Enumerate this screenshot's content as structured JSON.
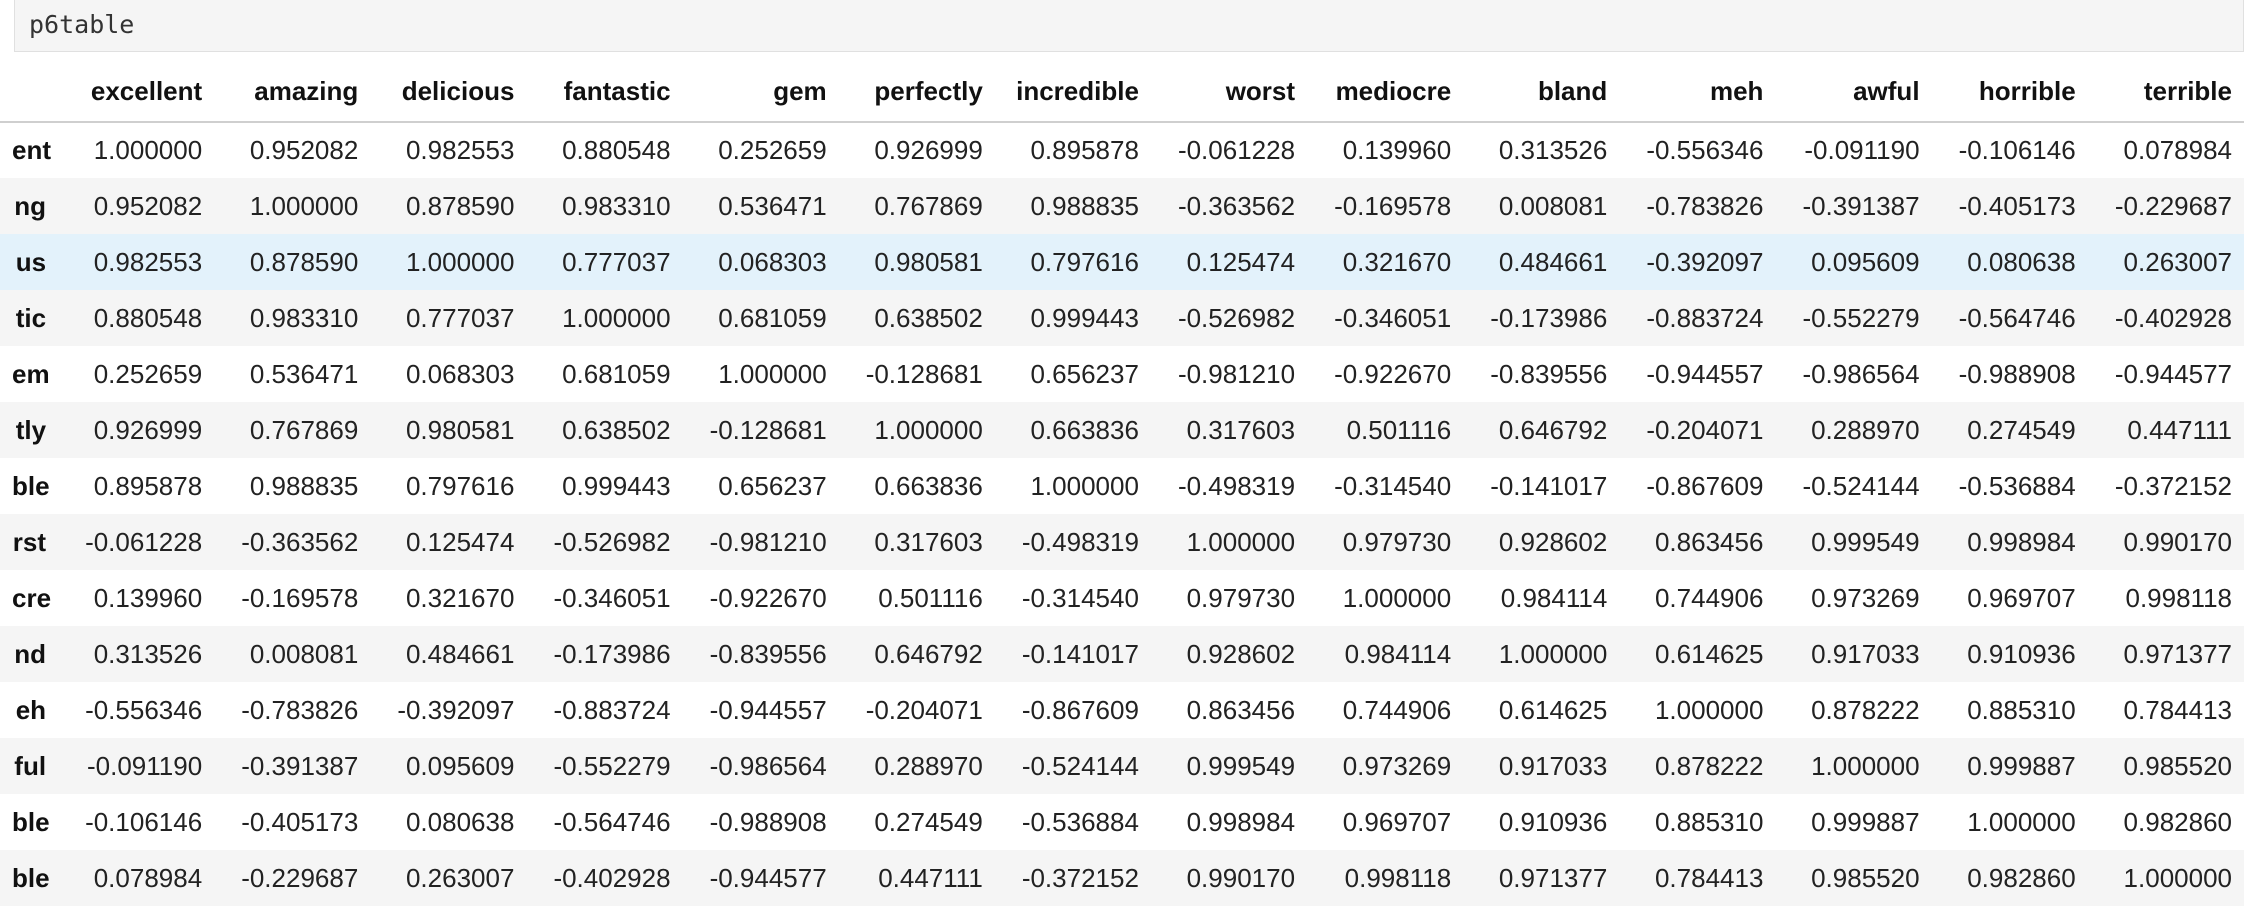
{
  "cell_code": "p6table",
  "table": {
    "columns": [
      "excellent",
      "amazing",
      "delicious",
      "fantastic",
      "gem",
      "perfectly",
      "incredible",
      "worst",
      "mediocre",
      "bland",
      "meh",
      "awful",
      "horrible",
      "terrible"
    ],
    "rows": [
      {
        "label": "ent",
        "values": [
          "1.000000",
          "0.952082",
          "0.982553",
          "0.880548",
          "0.252659",
          "0.926999",
          "0.895878",
          "-0.061228",
          "0.139960",
          "0.313526",
          "-0.556346",
          "-0.091190",
          "-0.106146",
          "0.078984"
        ]
      },
      {
        "label": "ng",
        "values": [
          "0.952082",
          "1.000000",
          "0.878590",
          "0.983310",
          "0.536471",
          "0.767869",
          "0.988835",
          "-0.363562",
          "-0.169578",
          "0.008081",
          "-0.783826",
          "-0.391387",
          "-0.405173",
          "-0.229687"
        ]
      },
      {
        "label": "us",
        "values": [
          "0.982553",
          "0.878590",
          "1.000000",
          "0.777037",
          "0.068303",
          "0.980581",
          "0.797616",
          "0.125474",
          "0.321670",
          "0.484661",
          "-0.392097",
          "0.095609",
          "0.080638",
          "0.263007"
        ]
      },
      {
        "label": "tic",
        "values": [
          "0.880548",
          "0.983310",
          "0.777037",
          "1.000000",
          "0.681059",
          "0.638502",
          "0.999443",
          "-0.526982",
          "-0.346051",
          "-0.173986",
          "-0.883724",
          "-0.552279",
          "-0.564746",
          "-0.402928"
        ]
      },
      {
        "label": "em",
        "values": [
          "0.252659",
          "0.536471",
          "0.068303",
          "0.681059",
          "1.000000",
          "-0.128681",
          "0.656237",
          "-0.981210",
          "-0.922670",
          "-0.839556",
          "-0.944557",
          "-0.986564",
          "-0.988908",
          "-0.944577"
        ]
      },
      {
        "label": "tly",
        "values": [
          "0.926999",
          "0.767869",
          "0.980581",
          "0.638502",
          "-0.128681",
          "1.000000",
          "0.663836",
          "0.317603",
          "0.501116",
          "0.646792",
          "-0.204071",
          "0.288970",
          "0.274549",
          "0.447111"
        ]
      },
      {
        "label": "ble",
        "values": [
          "0.895878",
          "0.988835",
          "0.797616",
          "0.999443",
          "0.656237",
          "0.663836",
          "1.000000",
          "-0.498319",
          "-0.314540",
          "-0.141017",
          "-0.867609",
          "-0.524144",
          "-0.536884",
          "-0.372152"
        ]
      },
      {
        "label": "rst",
        "values": [
          "-0.061228",
          "-0.363562",
          "0.125474",
          "-0.526982",
          "-0.981210",
          "0.317603",
          "-0.498319",
          "1.000000",
          "0.979730",
          "0.928602",
          "0.863456",
          "0.999549",
          "0.998984",
          "0.990170"
        ]
      },
      {
        "label": "cre",
        "values": [
          "0.139960",
          "-0.169578",
          "0.321670",
          "-0.346051",
          "-0.922670",
          "0.501116",
          "-0.314540",
          "0.979730",
          "1.000000",
          "0.984114",
          "0.744906",
          "0.973269",
          "0.969707",
          "0.998118"
        ]
      },
      {
        "label": "nd",
        "values": [
          "0.313526",
          "0.008081",
          "0.484661",
          "-0.173986",
          "-0.839556",
          "0.646792",
          "-0.141017",
          "0.928602",
          "0.984114",
          "1.000000",
          "0.614625",
          "0.917033",
          "0.910936",
          "0.971377"
        ]
      },
      {
        "label": "eh",
        "values": [
          "-0.556346",
          "-0.783826",
          "-0.392097",
          "-0.883724",
          "-0.944557",
          "-0.204071",
          "-0.867609",
          "0.863456",
          "0.744906",
          "0.614625",
          "1.000000",
          "0.878222",
          "0.885310",
          "0.784413"
        ]
      },
      {
        "label": "ful",
        "values": [
          "-0.091190",
          "-0.391387",
          "0.095609",
          "-0.552279",
          "-0.986564",
          "0.288970",
          "-0.524144",
          "0.999549",
          "0.973269",
          "0.917033",
          "0.878222",
          "1.000000",
          "0.999887",
          "0.985520"
        ]
      },
      {
        "label": "ble",
        "values": [
          "-0.106146",
          "-0.405173",
          "0.080638",
          "-0.564746",
          "-0.988908",
          "0.274549",
          "-0.536884",
          "0.998984",
          "0.969707",
          "0.910936",
          "0.885310",
          "0.999887",
          "1.000000",
          "0.982860"
        ]
      },
      {
        "label": "ble",
        "values": [
          "0.078984",
          "-0.229687",
          "0.263007",
          "-0.402928",
          "-0.944577",
          "0.447111",
          "-0.372152",
          "0.990170",
          "0.998118",
          "0.971377",
          "0.784413",
          "0.985520",
          "0.982860",
          "1.000000"
        ]
      }
    ],
    "highlighted_row": 2
  },
  "colors": {
    "highlight": "#e3f2fb",
    "stripe": "#f5f5f5"
  }
}
